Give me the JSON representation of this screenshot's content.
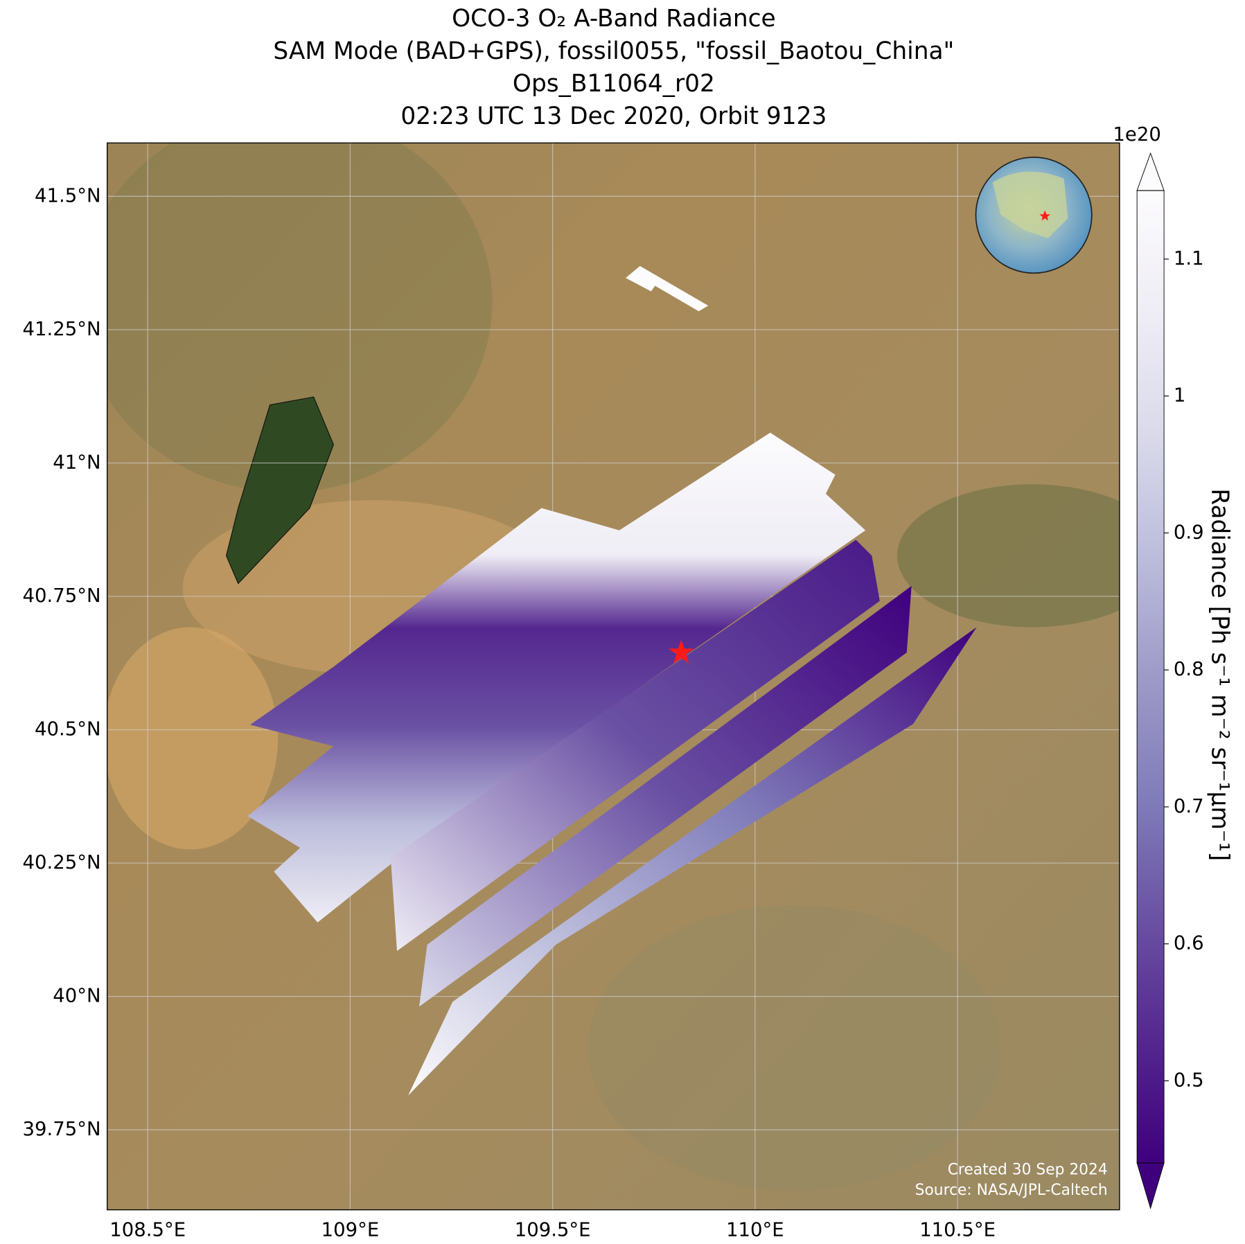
{
  "chart_data": {
    "type": "map",
    "title": [
      "OCO-3 O₂ A-Band Radiance",
      "SAM Mode (BAD+GPS), fossil0055, \"fossil_Baotou_China\"",
      "Ops_B11064_r02",
      "02:23 UTC 13 Dec 2020, Orbit 9123"
    ],
    "xlim": [
      108.4,
      110.9
    ],
    "ylim": [
      39.6,
      41.6
    ],
    "xticks": [
      {
        "value": 108.5,
        "label": "108.5°E"
      },
      {
        "value": 109,
        "label": "109°E"
      },
      {
        "value": 109.5,
        "label": "109.5°E"
      },
      {
        "value": 110,
        "label": "110°E"
      },
      {
        "value": 110.5,
        "label": "110.5°E"
      }
    ],
    "yticks": [
      {
        "value": 39.75,
        "label": "39.75°N"
      },
      {
        "value": 40,
        "label": "40°N"
      },
      {
        "value": 40.25,
        "label": "40.25°N"
      },
      {
        "value": 40.5,
        "label": "40.5°N"
      },
      {
        "value": 40.75,
        "label": "40.75°N"
      },
      {
        "value": 41,
        "label": "41°N"
      },
      {
        "value": 41.25,
        "label": "41.25°N"
      },
      {
        "value": 41.5,
        "label": "41.5°N"
      }
    ],
    "grid": true,
    "colorbar": {
      "label": "Radiance [Ph s⁻¹ m⁻² sr⁻¹μm⁻¹]",
      "offset_label": "1e20",
      "clim": [
        0.44,
        1.15
      ],
      "ticks": [
        0.5,
        0.6,
        0.7,
        0.8,
        0.9,
        1.0,
        1.1
      ],
      "colormap": [
        "#3f007d",
        "#54278f",
        "#6a51a3",
        "#807dba",
        "#9e9ac8",
        "#bcbddc",
        "#dadaeb",
        "#efedf5",
        "#fcfbfd"
      ]
    },
    "credits": [
      "Created 30 Sep 2024",
      "Source: NASA/JPL-Caltech"
    ]
  }
}
